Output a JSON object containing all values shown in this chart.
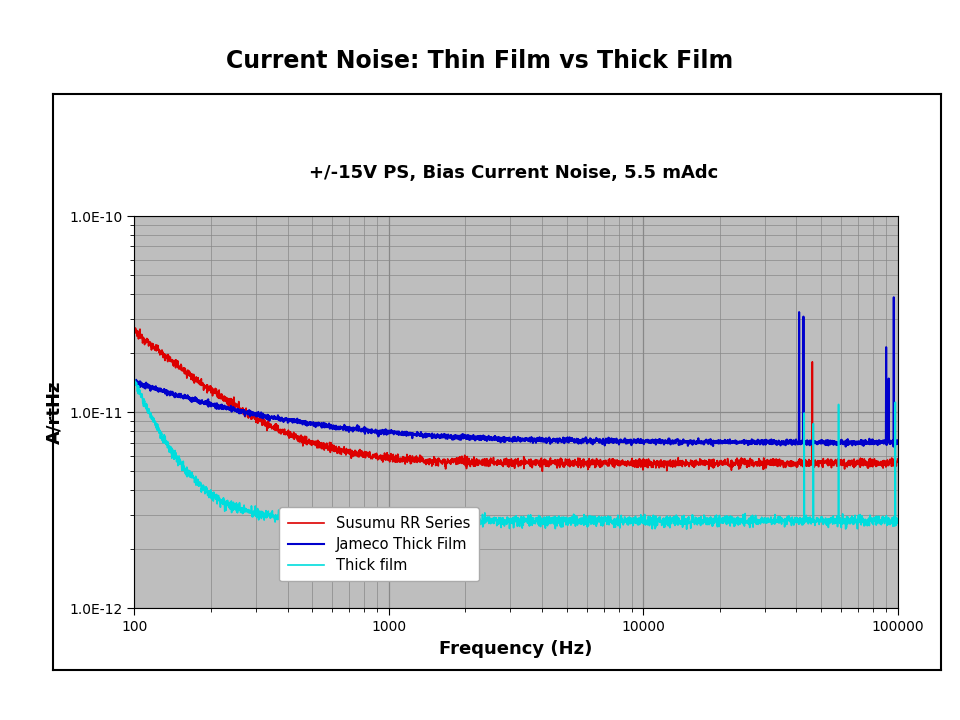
{
  "title": "Current Noise: Thin Film vs Thick Film",
  "subtitle": "+/-15V PS, Bias Current Noise, 5.5 mAdc",
  "xlabel": "Frequency (Hz)",
  "ylabel": "A/rtHz",
  "xlim": [
    100,
    100000
  ],
  "ylim": [
    1e-12,
    1e-10
  ],
  "background_color": "#bebebe",
  "outer_background": "#ffffff",
  "inner_box_color": "#ffffff",
  "grid_color": "#888888",
  "legend_labels": [
    "Susumu RR Series",
    "Jameco Thick Film",
    "Thick film"
  ],
  "series_colors": [
    "#dd0000",
    "#0000cc",
    "#00dddd"
  ],
  "title_fontsize": 17,
  "subtitle_fontsize": 13,
  "label_fontsize": 13,
  "tick_fontsize": 10
}
